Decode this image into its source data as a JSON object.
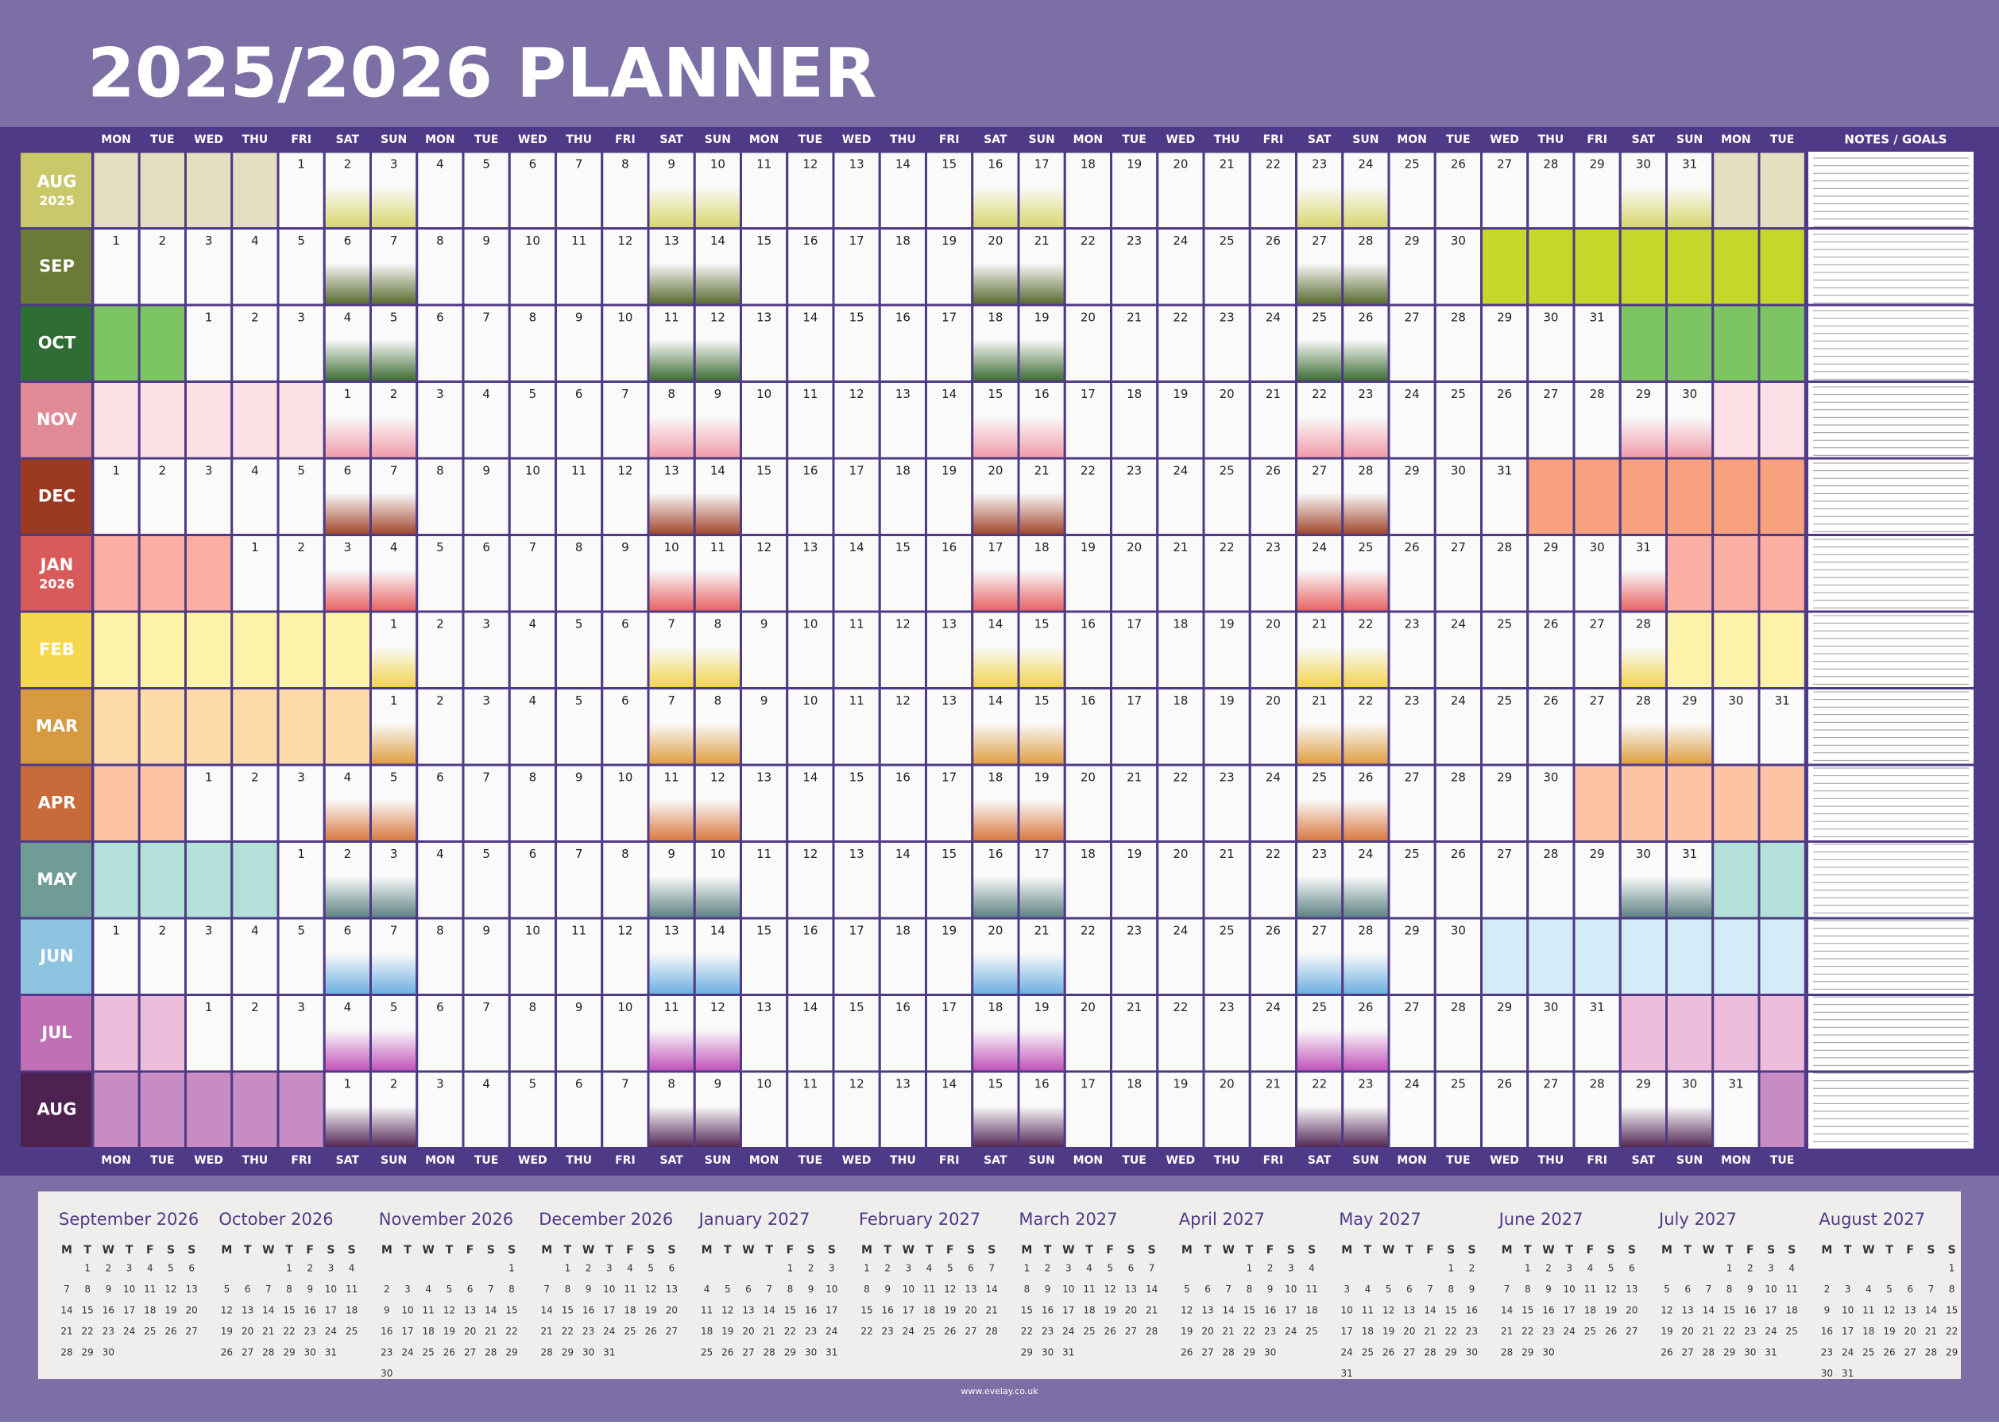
{
  "header": {
    "title": "2025/2026 PLANNER"
  },
  "weekday_headers": [
    "MON",
    "TUE",
    "WED",
    "THU",
    "FRI",
    "SAT",
    "SUN",
    "MON",
    "TUE",
    "WED",
    "THU",
    "FRI",
    "SAT",
    "SUN",
    "MON",
    "TUE",
    "WED",
    "THU",
    "FRI",
    "SAT",
    "SUN",
    "MON",
    "TUE",
    "WED",
    "THU",
    "FRI",
    "SAT",
    "SUN",
    "MON",
    "TUE",
    "WED",
    "THU",
    "FRI",
    "SAT",
    "SUN",
    "MON",
    "TUE"
  ],
  "notes_header": "NOTES / GOALS",
  "months": [
    {
      "label": "AUG",
      "year": "2025",
      "color": "#c9c96a",
      "blank_color": "#e4e0bf",
      "weekend_color": "#d6d66a",
      "cells": [
        null,
        null,
        null,
        null,
        1,
        2,
        3,
        4,
        5,
        6,
        7,
        8,
        9,
        10,
        11,
        12,
        13,
        14,
        15,
        16,
        17,
        18,
        19,
        20,
        21,
        22,
        23,
        24,
        25,
        26,
        27,
        28,
        29,
        30,
        31,
        null,
        null
      ]
    },
    {
      "label": "SEP",
      "color": "#6b7a36",
      "blank_color": "#c5d72b",
      "weekend_color": "#56682c",
      "cells": [
        1,
        2,
        3,
        4,
        5,
        6,
        7,
        8,
        9,
        10,
        11,
        12,
        13,
        14,
        15,
        16,
        17,
        18,
        19,
        20,
        21,
        22,
        23,
        24,
        25,
        26,
        27,
        28,
        29,
        30,
        null,
        null,
        null,
        null,
        null,
        null,
        null
      ]
    },
    {
      "label": "OCT",
      "color": "#2e6e34",
      "blank_color": "#7dc462",
      "weekend_color": "#3a6a30",
      "cells": [
        null,
        null,
        1,
        2,
        3,
        4,
        5,
        6,
        7,
        8,
        9,
        10,
        11,
        12,
        13,
        14,
        15,
        16,
        17,
        18,
        19,
        20,
        21,
        22,
        23,
        24,
        25,
        26,
        27,
        28,
        29,
        30,
        31,
        null,
        null,
        null,
        null
      ]
    },
    {
      "label": "NOV",
      "color": "#e08a96",
      "blank_color": "#fde0e6",
      "weekend_color": "#f09aa8",
      "cells": [
        null,
        null,
        null,
        null,
        null,
        1,
        2,
        3,
        4,
        5,
        6,
        7,
        8,
        9,
        10,
        11,
        12,
        13,
        14,
        15,
        16,
        17,
        18,
        19,
        20,
        21,
        22,
        23,
        24,
        25,
        26,
        27,
        28,
        29,
        30,
        null,
        null
      ]
    },
    {
      "label": "DEC",
      "color": "#9b3a22",
      "blank_color": "#f7a17f",
      "weekend_color": "#a0442a",
      "cells": [
        1,
        2,
        3,
        4,
        5,
        6,
        7,
        8,
        9,
        10,
        11,
        12,
        13,
        14,
        15,
        16,
        17,
        18,
        19,
        20,
        21,
        22,
        23,
        24,
        25,
        26,
        27,
        28,
        29,
        30,
        31,
        null,
        null,
        null,
        null,
        null,
        null
      ]
    },
    {
      "label": "JAN",
      "year": "2026",
      "color": "#d95a5a",
      "blank_color": "#fbaea2",
      "weekend_color": "#e86060",
      "cells": [
        null,
        null,
        null,
        1,
        2,
        3,
        4,
        5,
        6,
        7,
        8,
        9,
        10,
        11,
        12,
        13,
        14,
        15,
        16,
        17,
        18,
        19,
        20,
        21,
        22,
        23,
        24,
        25,
        26,
        27,
        28,
        29,
        30,
        31,
        null,
        null,
        null
      ]
    },
    {
      "label": "FEB",
      "color": "#f5d84e",
      "blank_color": "#fdf3a8",
      "weekend_color": "#f2d24a",
      "cells": [
        null,
        null,
        null,
        null,
        null,
        null,
        1,
        2,
        3,
        4,
        5,
        6,
        7,
        8,
        9,
        10,
        11,
        12,
        13,
        14,
        15,
        16,
        17,
        18,
        19,
        20,
        21,
        22,
        23,
        24,
        25,
        26,
        27,
        28,
        null,
        null,
        null
      ]
    },
    {
      "label": "MAR",
      "color": "#d79a40",
      "blank_color": "#fddba8",
      "weekend_color": "#df9c3e",
      "cells": [
        null,
        null,
        null,
        null,
        null,
        null,
        1,
        2,
        3,
        4,
        5,
        6,
        7,
        8,
        9,
        10,
        11,
        12,
        13,
        14,
        15,
        16,
        17,
        18,
        19,
        20,
        21,
        22,
        23,
        24,
        25,
        26,
        27,
        28,
        29,
        30,
        31
      ]
    },
    {
      "label": "APR",
      "color": "#c86a3a",
      "blank_color": "#fdc4a4",
      "weekend_color": "#d8763c",
      "cells": [
        null,
        null,
        1,
        2,
        3,
        4,
        5,
        6,
        7,
        8,
        9,
        10,
        11,
        12,
        13,
        14,
        15,
        16,
        17,
        18,
        19,
        20,
        21,
        22,
        23,
        24,
        25,
        26,
        27,
        28,
        29,
        30,
        null,
        null,
        null,
        null,
        null
      ]
    },
    {
      "label": "MAY",
      "color": "#6f9d96",
      "blank_color": "#b4e0da",
      "weekend_color": "#5a8080",
      "cells": [
        null,
        null,
        null,
        null,
        1,
        2,
        3,
        4,
        5,
        6,
        7,
        8,
        9,
        10,
        11,
        12,
        13,
        14,
        15,
        16,
        17,
        18,
        19,
        20,
        21,
        22,
        23,
        24,
        25,
        26,
        27,
        28,
        29,
        30,
        31,
        null,
        null
      ]
    },
    {
      "label": "JUN",
      "color": "#8fc4e0",
      "blank_color": "#d4ecf8",
      "weekend_color": "#6aaee0",
      "cells": [
        1,
        2,
        3,
        4,
        5,
        6,
        7,
        8,
        9,
        10,
        11,
        12,
        13,
        14,
        15,
        16,
        17,
        18,
        19,
        20,
        21,
        22,
        23,
        24,
        25,
        26,
        27,
        28,
        29,
        30,
        null,
        null,
        null,
        null,
        null,
        null,
        null
      ]
    },
    {
      "label": "JUL",
      "color": "#c070b4",
      "blank_color": "#ecbcda",
      "weekend_color": "#c050b8",
      "cells": [
        null,
        null,
        1,
        2,
        3,
        4,
        5,
        6,
        7,
        8,
        9,
        10,
        11,
        12,
        13,
        14,
        15,
        16,
        17,
        18,
        19,
        20,
        21,
        22,
        23,
        24,
        25,
        26,
        27,
        28,
        29,
        30,
        31,
        null,
        null,
        null,
        null
      ]
    },
    {
      "label": "AUG",
      "color": "#4e2250",
      "blank_color": "#c88cc4",
      "weekend_color": "#4e2250",
      "cells": [
        null,
        null,
        null,
        null,
        null,
        1,
        2,
        3,
        4,
        5,
        6,
        7,
        8,
        9,
        10,
        11,
        12,
        13,
        14,
        15,
        16,
        17,
        18,
        19,
        20,
        21,
        22,
        23,
        24,
        25,
        26,
        27,
        28,
        29,
        30,
        31,
        null
      ]
    }
  ],
  "mini_weekdays": [
    "M",
    "T",
    "W",
    "T",
    "F",
    "S",
    "S"
  ],
  "mini_calendars": [
    {
      "title": "September 2026",
      "days": [
        null,
        1,
        2,
        3,
        4,
        5,
        6,
        7,
        8,
        9,
        10,
        11,
        12,
        13,
        14,
        15,
        16,
        17,
        18,
        19,
        20,
        21,
        22,
        23,
        24,
        25,
        26,
        27,
        28,
        29,
        30
      ]
    },
    {
      "title": "October 2026",
      "days": [
        null,
        null,
        null,
        1,
        2,
        3,
        4,
        5,
        6,
        7,
        8,
        9,
        10,
        11,
        12,
        13,
        14,
        15,
        16,
        17,
        18,
        19,
        20,
        21,
        22,
        23,
        24,
        25,
        26,
        27,
        28,
        29,
        30,
        31
      ]
    },
    {
      "title": "November 2026",
      "days": [
        null,
        null,
        null,
        null,
        null,
        null,
        1,
        2,
        3,
        4,
        5,
        6,
        7,
        8,
        9,
        10,
        11,
        12,
        13,
        14,
        15,
        16,
        17,
        18,
        19,
        20,
        21,
        22,
        23,
        24,
        25,
        26,
        27,
        28,
        29,
        30
      ]
    },
    {
      "title": "December 2026",
      "days": [
        null,
        1,
        2,
        3,
        4,
        5,
        6,
        7,
        8,
        9,
        10,
        11,
        12,
        13,
        14,
        15,
        16,
        17,
        18,
        19,
        20,
        21,
        22,
        23,
        24,
        25,
        26,
        27,
        28,
        29,
        30,
        31
      ]
    },
    {
      "title": "January 2027",
      "days": [
        null,
        null,
        null,
        null,
        1,
        2,
        3,
        4,
        5,
        6,
        7,
        8,
        9,
        10,
        11,
        12,
        13,
        14,
        15,
        16,
        17,
        18,
        19,
        20,
        21,
        22,
        23,
        24,
        25,
        26,
        27,
        28,
        29,
        30,
        31
      ]
    },
    {
      "title": "February 2027",
      "days": [
        1,
        2,
        3,
        4,
        5,
        6,
        7,
        8,
        9,
        10,
        11,
        12,
        13,
        14,
        15,
        16,
        17,
        18,
        19,
        20,
        21,
        22,
        23,
        24,
        25,
        26,
        27,
        28
      ]
    },
    {
      "title": "March 2027",
      "days": [
        1,
        2,
        3,
        4,
        5,
        6,
        7,
        8,
        9,
        10,
        11,
        12,
        13,
        14,
        15,
        16,
        17,
        18,
        19,
        20,
        21,
        22,
        23,
        24,
        25,
        26,
        27,
        28,
        29,
        30,
        31
      ]
    },
    {
      "title": "April 2027",
      "days": [
        null,
        null,
        null,
        1,
        2,
        3,
        4,
        5,
        6,
        7,
        8,
        9,
        10,
        11,
        12,
        13,
        14,
        15,
        16,
        17,
        18,
        19,
        20,
        21,
        22,
        23,
        24,
        25,
        26,
        27,
        28,
        29,
        30
      ]
    },
    {
      "title": "May 2027",
      "days": [
        null,
        null,
        null,
        null,
        null,
        1,
        2,
        3,
        4,
        5,
        6,
        7,
        8,
        9,
        10,
        11,
        12,
        13,
        14,
        15,
        16,
        17,
        18,
        19,
        20,
        21,
        22,
        23,
        24,
        25,
        26,
        27,
        28,
        29,
        30,
        31
      ]
    },
    {
      "title": "June 2027",
      "days": [
        null,
        1,
        2,
        3,
        4,
        5,
        6,
        7,
        8,
        9,
        10,
        11,
        12,
        13,
        14,
        15,
        16,
        17,
        18,
        19,
        20,
        21,
        22,
        23,
        24,
        25,
        26,
        27,
        28,
        29,
        30
      ]
    },
    {
      "title": "July 2027",
      "days": [
        null,
        null,
        null,
        1,
        2,
        3,
        4,
        5,
        6,
        7,
        8,
        9,
        10,
        11,
        12,
        13,
        14,
        15,
        16,
        17,
        18,
        19,
        20,
        21,
        22,
        23,
        24,
        25,
        26,
        27,
        28,
        29,
        30,
        31
      ]
    },
    {
      "title": "August 2027",
      "days": [
        null,
        null,
        null,
        null,
        null,
        null,
        1,
        2,
        3,
        4,
        5,
        6,
        7,
        8,
        9,
        10,
        11,
        12,
        13,
        14,
        15,
        16,
        17,
        18,
        19,
        20,
        21,
        22,
        23,
        24,
        25,
        26,
        27,
        28,
        29,
        30,
        31
      ]
    }
  ],
  "footer": "www.evelay.co.uk"
}
